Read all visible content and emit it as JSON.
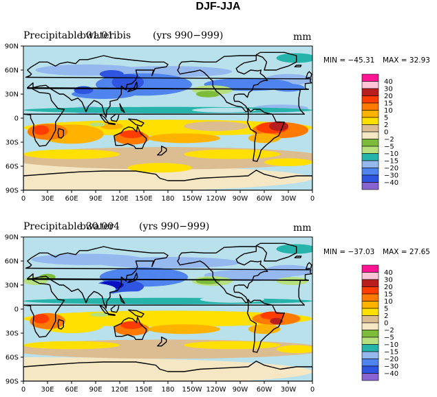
{
  "figure": {
    "title": "DJF-JJA",
    "colors": [
      "#8a63d2",
      "#0b10c0",
      "#2f54e0",
      "#4f84ef",
      "#95b8ef",
      "#b9e1ec",
      "#26b3aa",
      "#b5e07d",
      "#7dbb3a",
      "#f5e6c4",
      "#dcbd91",
      "#ffe000",
      "#ffb300",
      "#ff7a00",
      "#ff3d00",
      "#b81e1e",
      "#ffc4d6",
      "#ff1493"
    ]
  },
  "chart_data": [
    {
      "type": "heatmap",
      "title": "Precipitable water",
      "case": "b01.01ibis",
      "period": "(yrs 990−999)",
      "units": "mm",
      "min_label": "MIN = −45.31",
      "max_label": "MAX =   32.93",
      "min": -45.31,
      "max": 32.93,
      "xticks": [
        "0",
        "30E",
        "60E",
        "90E",
        "120E",
        "150E",
        "180",
        "150W",
        "120W",
        "90W",
        "60W",
        "30W",
        "0"
      ],
      "yticks": [
        "90N",
        "60N",
        "30N",
        "0",
        "30S",
        "60S",
        "90S"
      ],
      "xlim": [
        0,
        360
      ],
      "ylim": [
        -90,
        90
      ],
      "levels": [
        "−40",
        "−30",
        "−20",
        "−15",
        "−10",
        "−5",
        "−2",
        "0",
        "2",
        "5",
        "10",
        "15",
        "20",
        "30",
        "40"
      ]
    },
    {
      "type": "heatmap",
      "title": "Precipitable water",
      "case": "b30.004",
      "period": "(yrs 990−999)",
      "units": "mm",
      "min_label": "MIN = −37.03",
      "max_label": "MAX =   27.65",
      "min": -37.03,
      "max": 27.65,
      "xticks": [
        "0",
        "30E",
        "60E",
        "90E",
        "120E",
        "150E",
        "180",
        "150W",
        "120W",
        "90W",
        "60W",
        "30W",
        "0"
      ],
      "yticks": [
        "90N",
        "60N",
        "30N",
        "0",
        "30S",
        "60S",
        "90S"
      ],
      "xlim": [
        0,
        360
      ],
      "ylim": [
        -90,
        90
      ],
      "levels": [
        "−40",
        "−30",
        "−20",
        "−15",
        "−10",
        "−5",
        "−2",
        "0",
        "2",
        "5",
        "10",
        "15",
        "20",
        "30",
        "40"
      ]
    }
  ]
}
